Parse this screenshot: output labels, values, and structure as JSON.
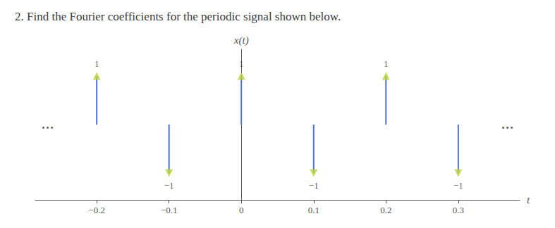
{
  "chart_data": {
    "type": "stem",
    "title": "2. Find the Fourier coefficients for the periodic signal shown below.",
    "xlabel": "t",
    "ylabel": "x(t)",
    "x": [
      -0.2,
      0.0,
      0.2,
      -0.1,
      0.1,
      0.3
    ],
    "values": [
      1.0,
      1.0,
      1.0,
      -1.0,
      -1.0,
      -1.0
    ],
    "value_labels": [
      "1",
      "1",
      "1",
      "−1",
      "−1",
      "−1"
    ],
    "data_labels": true,
    "xlim": [
      -0.285,
      0.385
    ],
    "ylim": [
      -1.55,
      1.55
    ],
    "xticks": [
      {
        "value": -0.2,
        "label": "−0.2"
      },
      {
        "value": -0.1,
        "label": "−0.1"
      },
      0,
      0.1,
      0.2,
      0.3
    ],
    "tick_labels": "x",
    "grid": false,
    "annotations": [
      {
        "text": "…",
        "x": -0.268,
        "y": 0.0
      },
      {
        "text": "…",
        "x": 0.368,
        "y": 0.0
      }
    ]
  }
}
